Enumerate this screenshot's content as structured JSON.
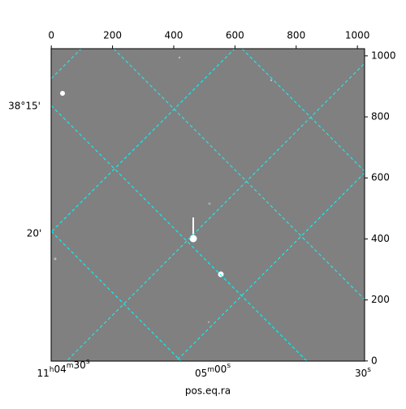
{
  "chart_data": {
    "type": "image",
    "xlabel": "pos.eq.ra",
    "xlim": [
      -0.5,
      1023.5
    ],
    "xticks": [
      0,
      200,
      400,
      600,
      800,
      1000
    ],
    "ylim": [
      -0.5,
      1023.5
    ],
    "yticks": [
      0,
      200,
      400,
      600,
      800,
      1000
    ],
    "ra_ticks": [
      "11h04m30s",
      "05m00s",
      "30s"
    ],
    "dec_ticks": [
      "38°15'",
      "20'"
    ],
    "grid_color": "#00ffff",
    "image_color": "#808080"
  }
}
